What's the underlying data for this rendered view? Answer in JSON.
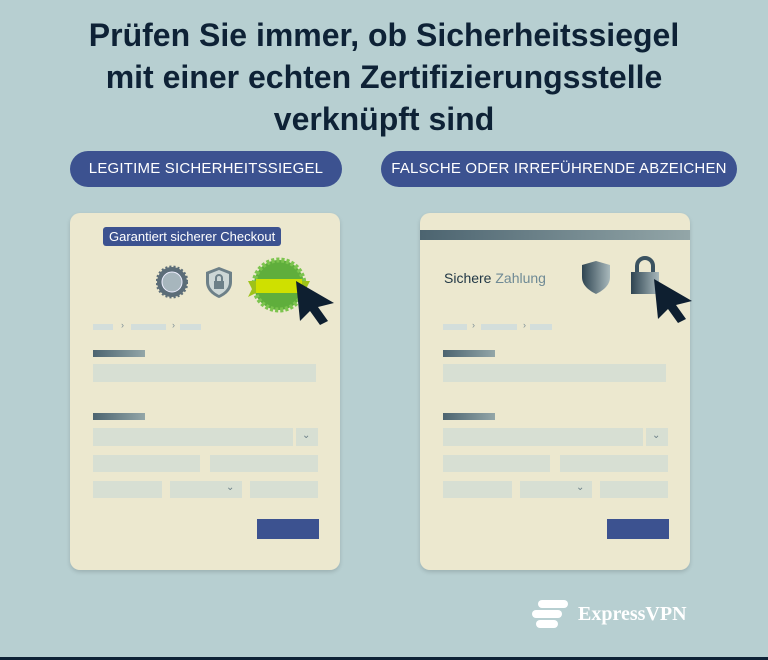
{
  "title": {
    "line1": "Prüfen Sie immer, ob Sicherheitssiegel",
    "line2": "mit einer echten Zertifizierungsstelle",
    "line3": "verknüpft sind"
  },
  "labels": {
    "legit": "LEGITIME SICHERHEITSSIEGEL",
    "fake": "FALSCHE ODER IRREFÜHRENDE ABZEICHEN"
  },
  "legit_card": {
    "tooltip": "Garantiert sicherer Checkout"
  },
  "fake_card": {
    "heading_dark": "Sichere",
    "heading_light": "Zahlung"
  },
  "brand": {
    "name": "ExpressVPN"
  },
  "colors": {
    "background": "#b7cfd1",
    "title": "#0e2236",
    "pill": "#3c5290",
    "card": "#ece8cf",
    "seal": "#5fae3c",
    "ribbon": "#cfe000"
  }
}
